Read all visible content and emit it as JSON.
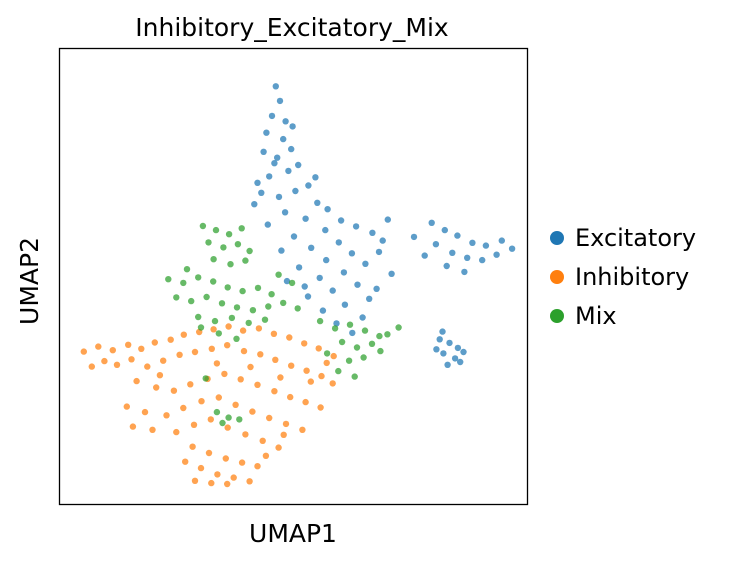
{
  "chart_data": {
    "type": "scatter",
    "title": "Inhibitory_Excitatory_Mix",
    "xlabel": "UMAP1",
    "ylabel": "UMAP2",
    "xlim": [
      0,
      100
    ],
    "ylim": [
      0,
      100
    ],
    "grid": false,
    "legend_position": "right",
    "ticks": false,
    "colors": {
      "Excitatory": "#1f77b4",
      "Inhibitory": "#ff7f0e",
      "Mix": "#2ca02c"
    },
    "series": [
      {
        "name": "Excitatory",
        "values": [
          [
            46.2,
            91.8
          ],
          [
            47.1,
            88.6
          ],
          [
            45.4,
            85.3
          ],
          [
            48.3,
            84.1
          ],
          [
            44.2,
            81.6
          ],
          [
            47.8,
            80.2
          ],
          [
            49.5,
            78.0
          ],
          [
            43.6,
            77.4
          ],
          [
            46.5,
            76.1
          ],
          [
            51.0,
            74.5
          ],
          [
            48.9,
            73.2
          ],
          [
            44.8,
            72.0
          ],
          [
            42.3,
            70.6
          ],
          [
            53.2,
            70.0
          ],
          [
            50.4,
            68.8
          ],
          [
            46.9,
            67.5
          ],
          [
            55.1,
            66.2
          ],
          [
            41.6,
            65.9
          ],
          [
            57.3,
            64.8
          ],
          [
            48.2,
            64.1
          ],
          [
            52.6,
            62.7
          ],
          [
            60.2,
            62.3
          ],
          [
            44.5,
            61.4
          ],
          [
            63.4,
            61.0
          ],
          [
            56.8,
            60.2
          ],
          [
            66.9,
            59.6
          ],
          [
            50.1,
            58.8
          ],
          [
            59.7,
            57.5
          ],
          [
            69.1,
            57.9
          ],
          [
            53.8,
            56.3
          ],
          [
            47.4,
            55.7
          ],
          [
            62.5,
            55.1
          ],
          [
            57.0,
            53.6
          ],
          [
            65.4,
            52.8
          ],
          [
            51.2,
            52.0
          ],
          [
            60.8,
            50.9
          ],
          [
            55.6,
            49.7
          ],
          [
            48.6,
            49.0
          ],
          [
            63.7,
            48.2
          ],
          [
            58.4,
            46.9
          ],
          [
            53.1,
            45.6
          ],
          [
            66.2,
            45.1
          ],
          [
            61.0,
            43.8
          ],
          [
            56.3,
            42.5
          ],
          [
            64.8,
            41.0
          ],
          [
            59.2,
            39.7
          ],
          [
            62.6,
            37.6
          ],
          [
            52.4,
            47.8
          ],
          [
            70.2,
            62.5
          ],
          [
            68.3,
            55.4
          ],
          [
            71.0,
            50.6
          ],
          [
            67.8,
            47.3
          ],
          [
            54.7,
            71.8
          ],
          [
            45.9,
            74.9
          ],
          [
            49.8,
            83.0
          ],
          [
            43.1,
            68.4
          ],
          [
            79.6,
            61.8
          ],
          [
            82.4,
            60.2
          ],
          [
            85.1,
            59.0
          ],
          [
            88.3,
            57.4
          ],
          [
            91.2,
            56.8
          ],
          [
            94.6,
            57.9
          ],
          [
            96.8,
            56.1
          ],
          [
            80.5,
            57.1
          ],
          [
            84.0,
            55.2
          ],
          [
            87.2,
            54.1
          ],
          [
            90.4,
            53.6
          ],
          [
            93.5,
            54.8
          ],
          [
            82.8,
            52.3
          ],
          [
            86.6,
            51.0
          ],
          [
            78.1,
            54.6
          ],
          [
            75.8,
            58.7
          ],
          [
            81.3,
            36.2
          ],
          [
            83.4,
            35.4
          ],
          [
            85.2,
            34.3
          ],
          [
            82.1,
            33.1
          ],
          [
            84.6,
            32.0
          ],
          [
            86.4,
            33.4
          ],
          [
            80.6,
            34.0
          ],
          [
            83.0,
            30.6
          ],
          [
            85.7,
            31.2
          ],
          [
            81.9,
            37.9
          ]
        ]
      },
      {
        "name": "Inhibitory",
        "values": [
          [
            5.1,
            33.5
          ],
          [
            8.2,
            34.6
          ],
          [
            11.3,
            33.8
          ],
          [
            14.6,
            35.0
          ],
          [
            17.4,
            34.1
          ],
          [
            20.3,
            35.5
          ],
          [
            23.7,
            36.1
          ],
          [
            26.5,
            37.2
          ],
          [
            29.8,
            37.8
          ],
          [
            32.9,
            38.4
          ],
          [
            36.1,
            39.0
          ],
          [
            39.2,
            38.1
          ],
          [
            42.6,
            38.6
          ],
          [
            45.8,
            37.4
          ],
          [
            49.1,
            36.6
          ],
          [
            52.3,
            35.3
          ],
          [
            55.4,
            34.2
          ],
          [
            58.6,
            32.5
          ],
          [
            12.2,
            30.6
          ],
          [
            15.3,
            31.8
          ],
          [
            18.7,
            30.2
          ],
          [
            22.1,
            31.5
          ],
          [
            25.6,
            32.8
          ],
          [
            28.9,
            33.4
          ],
          [
            32.5,
            34.1
          ],
          [
            35.8,
            34.9
          ],
          [
            39.4,
            33.6
          ],
          [
            42.9,
            32.9
          ],
          [
            46.1,
            31.7
          ],
          [
            49.5,
            30.4
          ],
          [
            52.8,
            29.3
          ],
          [
            56.0,
            28.1
          ],
          [
            58.4,
            26.5
          ],
          [
            16.4,
            27.0
          ],
          [
            20.6,
            25.6
          ],
          [
            24.4,
            24.9
          ],
          [
            27.9,
            26.3
          ],
          [
            31.6,
            27.5
          ],
          [
            35.2,
            28.6
          ],
          [
            38.7,
            27.4
          ],
          [
            42.3,
            26.2
          ],
          [
            45.9,
            24.8
          ],
          [
            49.3,
            23.5
          ],
          [
            52.6,
            22.4
          ],
          [
            55.8,
            21.2
          ],
          [
            14.3,
            21.4
          ],
          [
            18.2,
            20.2
          ],
          [
            22.8,
            19.5
          ],
          [
            26.4,
            21.1
          ],
          [
            30.3,
            22.6
          ],
          [
            34.0,
            23.4
          ],
          [
            37.6,
            21.8
          ],
          [
            41.2,
            20.3
          ],
          [
            44.8,
            18.9
          ],
          [
            48.4,
            17.6
          ],
          [
            51.9,
            16.3
          ],
          [
            15.6,
            17.0
          ],
          [
            19.8,
            16.3
          ],
          [
            24.9,
            15.8
          ],
          [
            28.7,
            17.4
          ],
          [
            32.3,
            18.6
          ],
          [
            35.9,
            16.8
          ],
          [
            39.7,
            15.3
          ],
          [
            43.4,
            13.9
          ],
          [
            46.8,
            12.4
          ],
          [
            28.4,
            12.6
          ],
          [
            31.9,
            11.2
          ],
          [
            35.5,
            10.0
          ],
          [
            39.0,
            9.1
          ],
          [
            42.3,
            8.3
          ],
          [
            26.8,
            9.3
          ],
          [
            30.2,
            7.9
          ],
          [
            33.7,
            6.5
          ],
          [
            37.2,
            5.8
          ],
          [
            40.6,
            5.0
          ],
          [
            28.9,
            5.1
          ],
          [
            32.4,
            4.6
          ],
          [
            35.8,
            4.4
          ],
          [
            44.1,
            10.6
          ],
          [
            47.9,
            15.2
          ],
          [
            9.5,
            31.4
          ],
          [
            6.8,
            30.2
          ],
          [
            21.4,
            28.3
          ],
          [
            53.7,
            26.9
          ],
          [
            57.1,
            31.0
          ],
          [
            33.6,
            30.9
          ],
          [
            40.8,
            30.1
          ],
          [
            47.2,
            27.8
          ]
        ]
      },
      {
        "name": "Mix",
        "values": [
          [
            30.6,
            61.1
          ],
          [
            33.4,
            60.2
          ],
          [
            36.2,
            59.3
          ],
          [
            38.9,
            60.6
          ],
          [
            31.8,
            57.5
          ],
          [
            35.0,
            56.4
          ],
          [
            38.1,
            57.1
          ],
          [
            40.6,
            55.6
          ],
          [
            32.9,
            53.8
          ],
          [
            36.5,
            52.7
          ],
          [
            39.7,
            53.5
          ],
          [
            23.2,
            49.4
          ],
          [
            26.4,
            48.6
          ],
          [
            29.6,
            49.8
          ],
          [
            32.8,
            48.9
          ],
          [
            35.9,
            47.6
          ],
          [
            39.1,
            46.8
          ],
          [
            42.4,
            47.5
          ],
          [
            45.3,
            46.1
          ],
          [
            24.9,
            45.4
          ],
          [
            28.1,
            44.6
          ],
          [
            31.4,
            45.5
          ],
          [
            34.7,
            44.1
          ],
          [
            37.9,
            43.2
          ],
          [
            41.3,
            42.6
          ],
          [
            44.6,
            43.4
          ],
          [
            47.8,
            44.2
          ],
          [
            50.9,
            43.0
          ],
          [
            29.6,
            41.1
          ],
          [
            33.2,
            40.2
          ],
          [
            36.8,
            40.9
          ],
          [
            40.4,
            39.8
          ],
          [
            43.9,
            40.5
          ],
          [
            55.7,
            40.2
          ],
          [
            58.9,
            38.6
          ],
          [
            62.1,
            39.4
          ],
          [
            65.3,
            38.1
          ],
          [
            68.4,
            36.9
          ],
          [
            60.4,
            35.6
          ],
          [
            63.6,
            34.4
          ],
          [
            66.8,
            35.2
          ],
          [
            70.1,
            37.3
          ],
          [
            57.2,
            33.1
          ],
          [
            61.9,
            31.5
          ],
          [
            65.0,
            32.2
          ],
          [
            68.6,
            33.6
          ],
          [
            72.5,
            38.8
          ],
          [
            59.6,
            29.2
          ],
          [
            63.1,
            28.0
          ],
          [
            34.0,
            37.5
          ],
          [
            30.2,
            38.8
          ],
          [
            37.8,
            36.3
          ],
          [
            33.6,
            20.2
          ],
          [
            36.1,
            19.0
          ],
          [
            34.8,
            17.8
          ],
          [
            38.4,
            18.6
          ],
          [
            31.2,
            27.6
          ],
          [
            46.8,
            50.4
          ],
          [
            49.7,
            48.6
          ],
          [
            27.2,
            51.6
          ]
        ]
      }
    ]
  }
}
